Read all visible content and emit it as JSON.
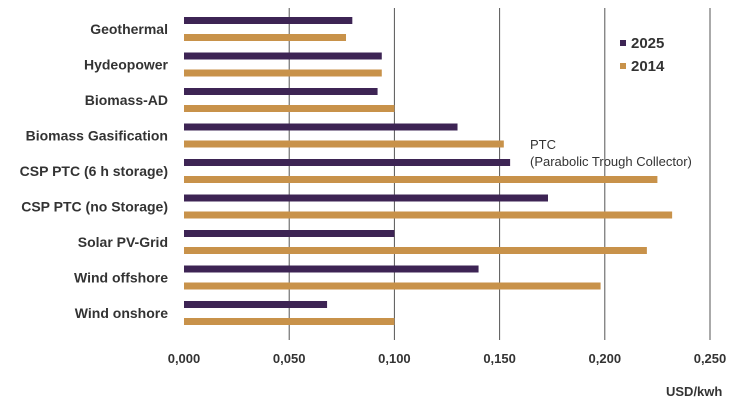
{
  "chart_data": {
    "type": "bar",
    "orientation": "horizontal",
    "categories": [
      "Geothermal",
      "Hydeopower",
      "Biomass-AD",
      "Biomass Gasification",
      "CSP PTC (6 h storage)",
      "CSP PTC (no Storage)",
      "Solar PV-Grid",
      "Wind offshore",
      "Wind onshore"
    ],
    "series": [
      {
        "name": "2025",
        "color": "#3d2454",
        "values": [
          0.08,
          0.094,
          0.092,
          0.13,
          0.155,
          0.173,
          0.1,
          0.14,
          0.068
        ]
      },
      {
        "name": "2014",
        "color": "#c8924a",
        "values": [
          0.077,
          0.094,
          0.1,
          0.152,
          0.225,
          0.232,
          0.22,
          0.198,
          0.1
        ]
      }
    ],
    "xlim": [
      0,
      0.25
    ],
    "xticks": [
      {
        "value": 0.0,
        "label": "0,000"
      },
      {
        "value": 0.05,
        "label": "0,050"
      },
      {
        "value": 0.1,
        "label": "0,100"
      },
      {
        "value": 0.15,
        "label": "0,150"
      },
      {
        "value": 0.2,
        "label": "0,200"
      },
      {
        "value": 0.25,
        "label": "0,250"
      }
    ],
    "xlabel": "USD/kwh",
    "title": "",
    "grid": "vertical",
    "legend_position": "top-right",
    "annotation": {
      "line1": "PTC",
      "line2": "(Parabolic Trough Collector)"
    }
  }
}
